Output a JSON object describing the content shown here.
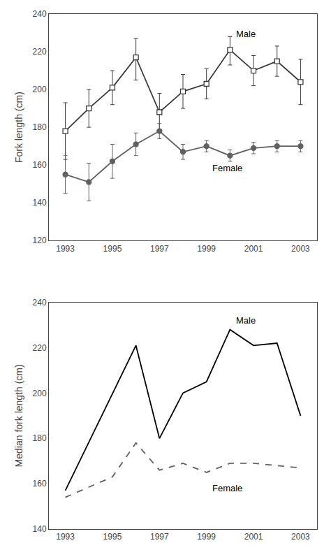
{
  "chart_data": [
    {
      "type": "line",
      "ylabel": "Fork length (cm)",
      "xlim": [
        1992.3,
        2003.7
      ],
      "xticks": [
        1993,
        1995,
        1997,
        1999,
        2001,
        2003
      ],
      "ylim": [
        120,
        240
      ],
      "yticks": [
        120,
        140,
        160,
        180,
        200,
        220,
        240
      ],
      "grid": false,
      "series": [
        {
          "name": "Male",
          "color": "#3a3a3a",
          "marker": "open_square",
          "line_style": "solid",
          "x": [
            1993,
            1994,
            1995,
            1996,
            1997,
            1998,
            1999,
            2000,
            2001,
            2002,
            2003
          ],
          "values": [
            178,
            190,
            201,
            217,
            188,
            199,
            203,
            221,
            210,
            215,
            204
          ],
          "yerr_lo": [
            15,
            10,
            9,
            12,
            10,
            9,
            8,
            8,
            8,
            8,
            12
          ],
          "yerr_hi": [
            15,
            10,
            9,
            10,
            10,
            9,
            8,
            7,
            8,
            8,
            12
          ]
        },
        {
          "name": "Female",
          "color": "#606060",
          "marker": "circle",
          "line_style": "solid",
          "x": [
            1993,
            1994,
            1995,
            1996,
            1997,
            1998,
            1999,
            2000,
            2001,
            2002,
            2003
          ],
          "values": [
            155,
            151,
            162,
            171,
            178,
            167,
            170,
            165,
            169,
            170,
            170
          ],
          "yerr_lo": [
            10,
            10,
            9,
            6,
            4,
            4,
            3,
            3,
            3,
            3,
            3
          ],
          "yerr_hi": [
            10,
            10,
            9,
            6,
            4,
            4,
            3,
            3,
            3,
            3,
            3
          ]
        }
      ],
      "annotations": [
        {
          "text": "Male",
          "x": 2000.2,
          "y": 226
        },
        {
          "text": "Female",
          "x": 1999.2,
          "y": 155
        }
      ]
    },
    {
      "type": "line",
      "ylabel": "Median fork length (cm)",
      "xlim": [
        1992.3,
        2003.7
      ],
      "xticks": [
        1993,
        1995,
        1997,
        1999,
        2001,
        2003
      ],
      "ylim": [
        140,
        240
      ],
      "yticks": [
        140,
        160,
        180,
        200,
        220,
        240
      ],
      "grid": false,
      "series": [
        {
          "name": "Male",
          "color": "#000000",
          "marker": "none",
          "line_style": "solid",
          "x": [
            1993,
            1996,
            1997,
            1998,
            1999,
            2000,
            2001,
            2002,
            2003
          ],
          "values": [
            157,
            221,
            180,
            200,
            205,
            228,
            221,
            222,
            190
          ]
        },
        {
          "name": "Female",
          "color": "#606060",
          "marker": "none",
          "line_style": "dashed",
          "x": [
            1993,
            1995,
            1996,
            1997,
            1998,
            1999,
            2000,
            2001,
            2002,
            2003
          ],
          "values": [
            154,
            163,
            178,
            166,
            169,
            165,
            169,
            169,
            168,
            167
          ]
        }
      ],
      "annotations": [
        {
          "text": "Male",
          "x": 2000.2,
          "y": 229
        },
        {
          "text": "Female",
          "x": 1999.2,
          "y": 155
        }
      ]
    }
  ]
}
